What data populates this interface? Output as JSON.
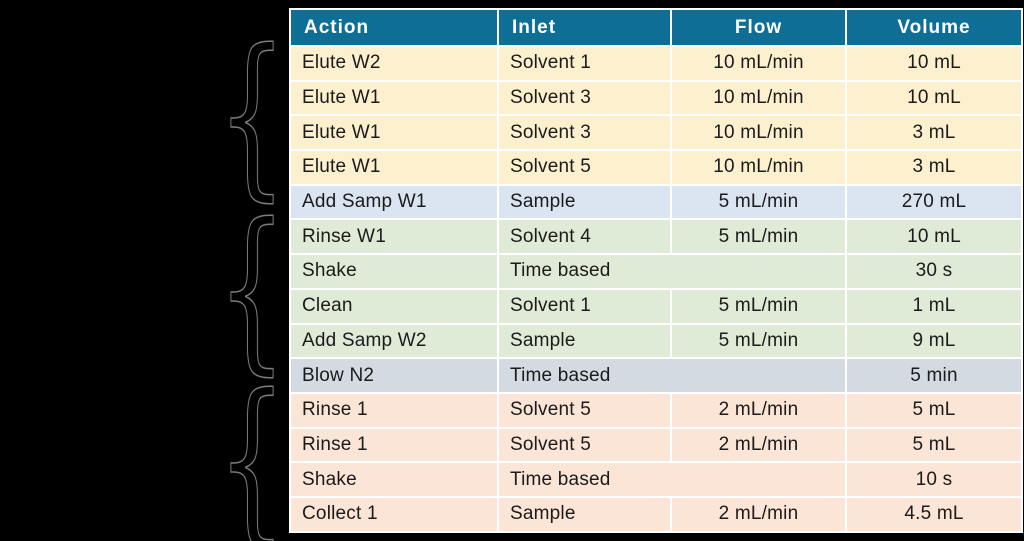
{
  "page": {
    "background_color": "#000000"
  },
  "table": {
    "headers": [
      "Action",
      "Inlet",
      "Flow",
      "Volume"
    ],
    "rows": [
      {
        "action": "Elute W2",
        "inlet": "Solvent 1",
        "flow": "10 mL/min",
        "volume": "10 mL",
        "group": "cream"
      },
      {
        "action": "Elute W1",
        "inlet": "Solvent 3",
        "flow": "10 mL/min",
        "volume": "10 mL",
        "group": "cream"
      },
      {
        "action": "Elute W1",
        "inlet": "Solvent 3",
        "flow": "10 mL/min",
        "volume": "3 mL",
        "group": "cream"
      },
      {
        "action": "Elute W1",
        "inlet": "Solvent 5",
        "flow": "10 mL/min",
        "volume": "3 mL",
        "group": "cream"
      },
      {
        "action": "Add Samp W1",
        "inlet": "Sample",
        "flow": "5 mL/min",
        "volume": "270 mL",
        "group": "blue"
      },
      {
        "action": "Rinse W1",
        "inlet": "Solvent 4",
        "flow": "5 mL/min",
        "volume": "10 mL",
        "group": "green"
      },
      {
        "action": "Shake",
        "inlet": "Time based",
        "flow": "",
        "volume": "30 s",
        "group": "green",
        "inlet_spans_flow": true
      },
      {
        "action": "Clean",
        "inlet": "Solvent 1",
        "flow": "5 mL/min",
        "volume": "1 mL",
        "group": "green"
      },
      {
        "action": "Add Samp W2",
        "inlet": "Sample",
        "flow": "5 mL/min",
        "volume": "9 mL",
        "group": "green"
      },
      {
        "action": "Blow N2",
        "inlet": "Time based",
        "flow": "",
        "volume": "5 min",
        "group": "gray",
        "inlet_spans_flow": true
      },
      {
        "action": "Rinse 1",
        "inlet": "Solvent 5",
        "flow": "2 mL/min",
        "volume": "5 mL",
        "group": "peach"
      },
      {
        "action": "Rinse 1",
        "inlet": "Solvent 5",
        "flow": "2 mL/min",
        "volume": "5 mL",
        "group": "peach"
      },
      {
        "action": "Shake",
        "inlet": "Time based",
        "flow": "",
        "volume": "10 s",
        "group": "peach",
        "inlet_spans_flow": true
      },
      {
        "action": "Collect 1",
        "inlet": "Sample",
        "flow": "2 mL/min",
        "volume": "4.5 mL",
        "group": "peach"
      }
    ],
    "colors": {
      "header_bg": "#0E6E95",
      "header_text": "#FFFFFF",
      "row_text": "#1B1B1B",
      "grid": "#FFFFFF",
      "groups": {
        "cream": "#FCF0CE",
        "blue": "#DBE5F1",
        "green": "#DFEBD6",
        "gray": "#D3DAE1",
        "peach": "#FBE5D7"
      }
    }
  },
  "braces": {
    "glyph": "{"
  }
}
